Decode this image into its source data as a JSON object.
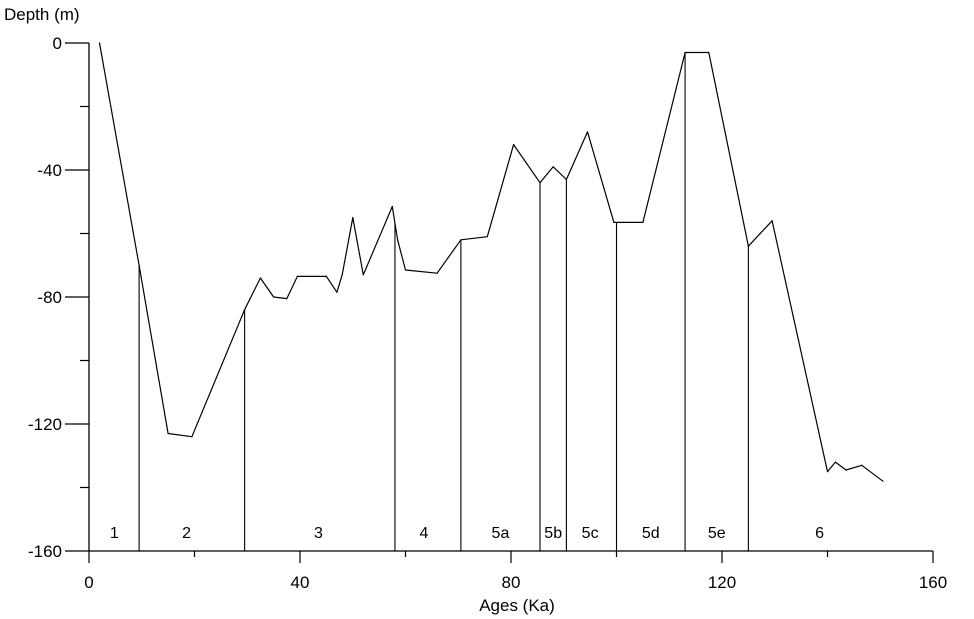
{
  "chart_data": {
    "type": "line",
    "xlabel": "Ages (Ka)",
    "ylabel": "Depth (m)",
    "xlim": [
      0,
      160
    ],
    "ylim": [
      -160,
      0
    ],
    "x_ticks": [
      0,
      40,
      80,
      120,
      160
    ],
    "x_minor_ticks": [
      20,
      60,
      100,
      140
    ],
    "y_ticks": [
      0,
      -40,
      -80,
      -120,
      -160
    ],
    "y_minor_ticks": [
      -20,
      -60,
      -100,
      -140
    ],
    "grid": false,
    "series": [
      {
        "x": [
          2,
          9.5,
          15,
          19.5,
          29.5,
          32.5,
          35,
          37.5,
          39.5,
          45,
          47,
          48,
          50,
          52,
          57.5,
          58.5,
          60,
          66,
          70.5,
          75.5,
          80.5,
          85.5,
          88,
          90.5,
          94.5,
          99.5,
          105,
          113,
          117.5,
          125,
          129.5,
          140,
          141.5,
          143.5,
          146.5,
          150.5
        ],
        "y": [
          0,
          -70,
          -123,
          -124,
          -84,
          -74,
          -80,
          -80.5,
          -73.5,
          -73.5,
          -78.5,
          -73,
          -55,
          -73,
          -51.5,
          -62,
          -71.5,
          -72.5,
          -62,
          -61,
          -32,
          -44,
          -39,
          -43,
          -28,
          -56.5,
          -56.5,
          -3,
          -3,
          -64,
          -56,
          -135,
          -132,
          -134.5,
          -133,
          -138
        ]
      }
    ],
    "boundaries": [
      9.5,
      29.5,
      58,
      70.5,
      85.5,
      90.5,
      100,
      113,
      125
    ],
    "stages": [
      {
        "label": "1",
        "x": 4.8
      },
      {
        "label": "2",
        "x": 18.5
      },
      {
        "label": "3",
        "x": 43.5
      },
      {
        "label": "4",
        "x": 63.5
      },
      {
        "label": "5a",
        "x": 78
      },
      {
        "label": "5b",
        "x": 88
      },
      {
        "label": "5c",
        "x": 95
      },
      {
        "label": "5d",
        "x": 106.5
      },
      {
        "label": "5e",
        "x": 119
      },
      {
        "label": "6",
        "x": 138.5
      }
    ]
  }
}
